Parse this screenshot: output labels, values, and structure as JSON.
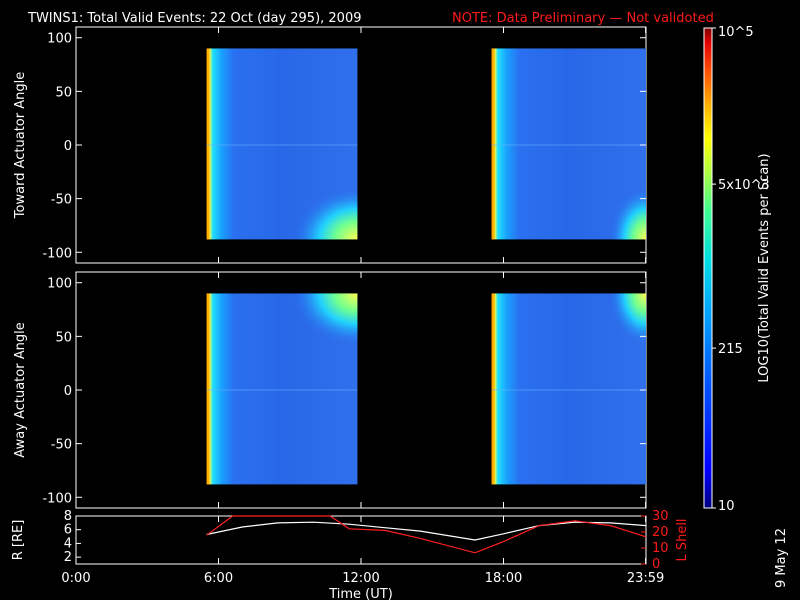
{
  "header": {
    "title": "TWINS1: Total Valid Events: 22 Oct (day 295), 2009",
    "note": "NOTE: Data Preliminary — Not validoted"
  },
  "colors": {
    "background": "#000000",
    "foreground": "#ffffff",
    "note_red": "#ff1a1a",
    "colormap": [
      "#000080",
      "#0000ff",
      "#0050ff",
      "#00a0ff",
      "#00e0e0",
      "#40ff90",
      "#b0ff40",
      "#ffff00",
      "#ffb000",
      "#ff5000",
      "#e00000",
      "#800000"
    ]
  },
  "stamp": "9 May 12",
  "colorbar": {
    "label": "LOG10(Total Valid Events per Scan)",
    "ticks": [
      "10",
      "215",
      "5x10^3",
      "10^5"
    ],
    "tick_values": [
      10,
      215,
      5000,
      100000
    ],
    "range": [
      10,
      100000
    ],
    "scale": "log"
  },
  "time_axis": {
    "label": "Time (UT)",
    "ticks": [
      "0:00",
      "6:00",
      "12:00",
      "18:00",
      "23:59"
    ],
    "tick_hours": [
      0,
      6,
      12,
      18,
      23.983
    ],
    "range_hours": [
      0,
      24
    ]
  },
  "chart_data": [
    {
      "type": "heatmap",
      "ylabel": "Toward Actuator Angle",
      "xlabel": "Time (UT)",
      "yticks": [
        "100",
        "50",
        "0",
        "-50",
        "-100"
      ],
      "ytick_values": [
        100,
        50,
        0,
        -50,
        -100
      ],
      "ylim": [
        -110,
        110
      ],
      "xlim": [
        0,
        24
      ],
      "segments": [
        {
          "start_hour": 5.5,
          "end_hour": 11.85,
          "angle_range": [
            -88,
            90
          ],
          "edge_hour": 8.85,
          "enhance_corner": "bottom-right"
        },
        {
          "start_hour": 17.5,
          "end_hour": 24.0,
          "angle_range": [
            -88,
            90
          ],
          "edge_hour": 22.3,
          "enhance_corner": "bottom-right"
        }
      ]
    },
    {
      "type": "heatmap",
      "ylabel": "Away Actuator Angle",
      "xlabel": "Time (UT)",
      "yticks": [
        "100",
        "50",
        "0",
        "-50",
        "-100"
      ],
      "ytick_values": [
        100,
        50,
        0,
        -50,
        -100
      ],
      "ylim": [
        -110,
        110
      ],
      "xlim": [
        0,
        24
      ],
      "segments": [
        {
          "start_hour": 5.5,
          "end_hour": 11.85,
          "angle_range": [
            -88,
            90
          ],
          "edge_hour": 8.85,
          "enhance_corner": "top-right"
        },
        {
          "start_hour": 17.5,
          "end_hour": 24.0,
          "angle_range": [
            -88,
            90
          ],
          "edge_hour": 22.3,
          "enhance_corner": "top-right"
        }
      ]
    },
    {
      "type": "line",
      "ylabel": "R [RE]",
      "y2label": "L Shell",
      "xlim": [
        0,
        24
      ],
      "ylim": [
        1,
        8
      ],
      "y2lim": [
        0,
        30
      ],
      "yticks": [
        "8",
        "6",
        "4",
        "2"
      ],
      "ytick_values": [
        8,
        6,
        4,
        2
      ],
      "y2ticks": [
        "30",
        "20",
        "10",
        "0"
      ],
      "y2tick_values": [
        30,
        20,
        10,
        0
      ],
      "series": [
        {
          "axis": "left",
          "color": "#ffffff",
          "x": [
            5.5,
            7,
            8.5,
            10,
            11.5,
            13,
            14.5,
            16.8,
            18,
            19.5,
            21,
            22.5,
            24
          ],
          "y": [
            5.3,
            6.4,
            7.0,
            7.1,
            6.8,
            6.3,
            5.8,
            4.5,
            5.4,
            6.6,
            7.1,
            7.0,
            6.6
          ]
        },
        {
          "axis": "right",
          "color": "#ff2020",
          "x": [
            5.5,
            6.6,
            10.7,
            11.5,
            13,
            14.5,
            16.8,
            18,
            19.5,
            21,
            22.5,
            24
          ],
          "y": [
            18,
            30,
            30,
            22,
            21,
            16,
            7,
            14,
            24,
            27,
            24,
            17
          ]
        }
      ]
    }
  ]
}
